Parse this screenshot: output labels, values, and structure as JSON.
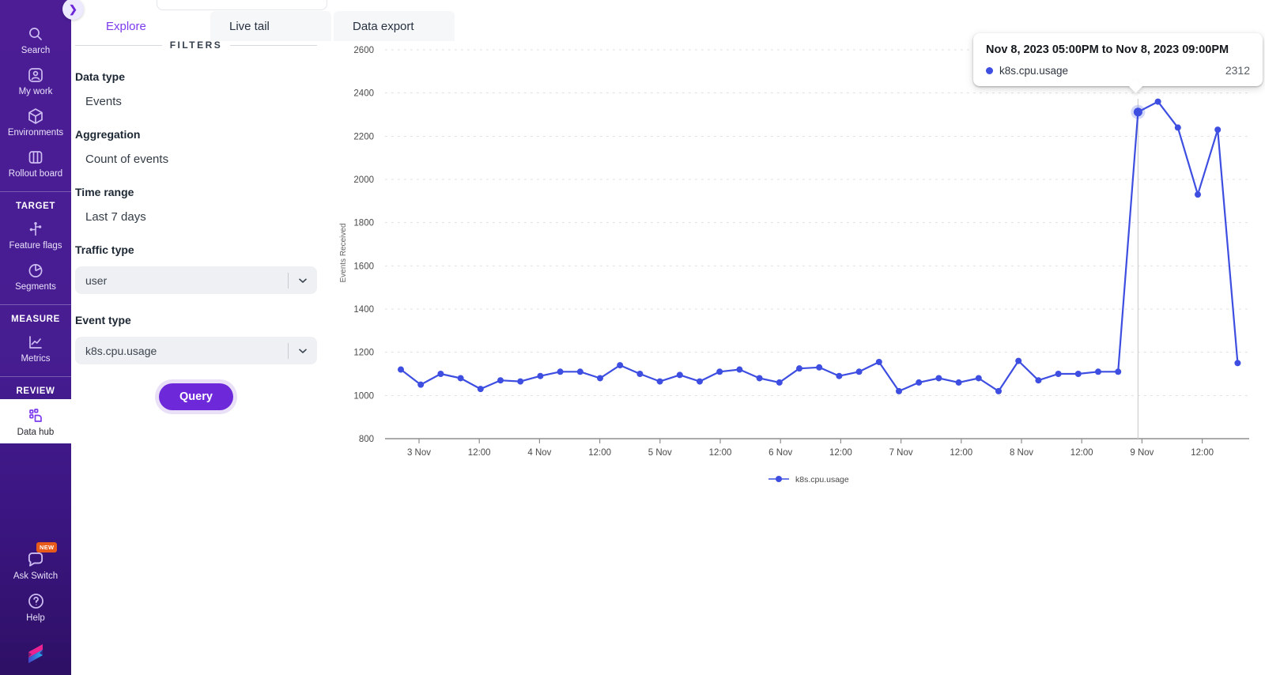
{
  "colors": {
    "sidebar_purple": "#4c1d95",
    "sidebar_purple_dark": "#2e1065",
    "accent_purple": "#7c3aed",
    "button_purple": "#6d28d9",
    "line_blue": "#3d4ee1",
    "badge_orange": "#e85a19"
  },
  "sidebar": {
    "expand_icon": "❯",
    "items": [
      {
        "label": "Search"
      },
      {
        "label": "My work"
      },
      {
        "label": "Environments"
      },
      {
        "label": "Rollout board"
      }
    ],
    "sections": [
      {
        "header": "TARGET",
        "items": [
          {
            "label": "Feature flags"
          },
          {
            "label": "Segments"
          }
        ]
      },
      {
        "header": "MEASURE",
        "items": [
          {
            "label": "Metrics"
          }
        ]
      },
      {
        "header": "REVIEW",
        "items": [
          {
            "label": "Data hub",
            "active": true
          }
        ]
      }
    ],
    "footer": {
      "ask_switch": "Ask Switch",
      "new_badge": "NEW",
      "help": "Help"
    }
  },
  "tabs": [
    {
      "label": "Explore",
      "active": true
    },
    {
      "label": "Live tail",
      "active": false
    },
    {
      "label": "Data export",
      "active": false
    }
  ],
  "filters": {
    "heading": "FILTERS",
    "fields": [
      {
        "label": "Data type",
        "value": "Events"
      },
      {
        "label": "Aggregation",
        "value": "Count of events"
      },
      {
        "label": "Time range",
        "value": "Last 7 days"
      },
      {
        "label": "Traffic type",
        "value": "user"
      },
      {
        "label": "Event type",
        "value": "k8s.cpu.usage"
      }
    ],
    "query_label": "Query"
  },
  "tooltip": {
    "title": "Nov 8, 2023 05:00PM to Nov 8, 2023 09:00PM",
    "series": "k8s.cpu.usage",
    "value": "2312"
  },
  "chart_data": {
    "type": "line",
    "title": "",
    "xlabel": "",
    "ylabel": "Events Received",
    "ylim": [
      800,
      2600
    ],
    "y_ticks": [
      800,
      1000,
      1200,
      1400,
      1600,
      1800,
      2000,
      2200,
      2400,
      2600
    ],
    "x_ticks": [
      "3 Nov",
      "12:00",
      "4 Nov",
      "12:00",
      "5 Nov",
      "12:00",
      "6 Nov",
      "12:00",
      "7 Nov",
      "12:00",
      "8 Nov",
      "12:00",
      "9 Nov",
      "12:00"
    ],
    "point_interval": "4h",
    "grid": "horizontal-dashed",
    "legend_position": "bottom-center",
    "legend": "k8s.cpu.usage",
    "hover_index": 37,
    "hover_value": 2312,
    "series": [
      {
        "name": "k8s.cpu.usage",
        "color": "#3d4ee1",
        "values": [
          1120,
          1050,
          1100,
          1080,
          1030,
          1070,
          1065,
          1090,
          1110,
          1110,
          1080,
          1140,
          1100,
          1065,
          1095,
          1065,
          1110,
          1120,
          1080,
          1060,
          1125,
          1130,
          1090,
          1110,
          1155,
          1020,
          1060,
          1080,
          1060,
          1080,
          1020,
          1160,
          1070,
          1100,
          1100,
          1110,
          1110,
          2312,
          2360,
          2240,
          1930,
          2230,
          1150
        ]
      }
    ]
  }
}
